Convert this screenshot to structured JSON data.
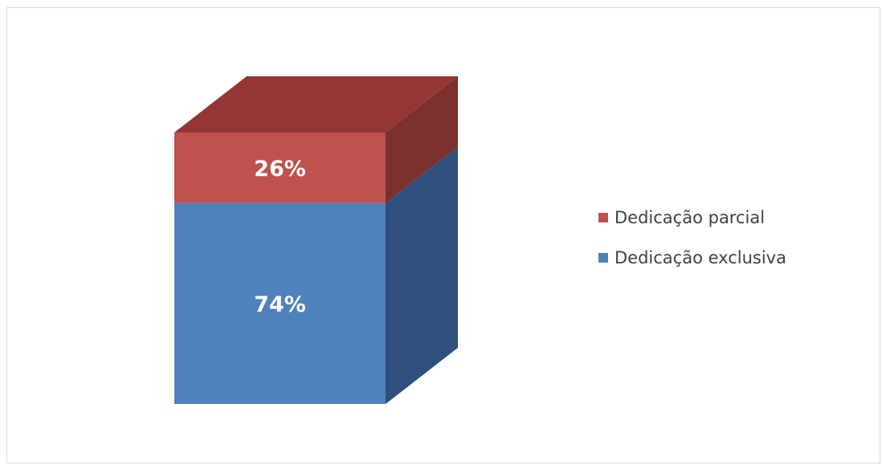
{
  "chart_data": {
    "type": "bar",
    "stacked": true,
    "three_d": true,
    "categories": [
      ""
    ],
    "series": [
      {
        "name": "Dedicação exclusiva",
        "values": [
          74
        ],
        "label": "74%",
        "color": "#4f81bd",
        "side_color": "#2f4f7c"
      },
      {
        "name": "Dedicação parcial",
        "values": [
          26
        ],
        "label": "26%",
        "color": "#c0504d",
        "side_color": "#7b302e",
        "top_color": "#943634"
      }
    ],
    "ylim": [
      0,
      100
    ],
    "legend_position": "right",
    "legend_order": [
      "Dedicação parcial",
      "Dedicação exclusiva"
    ],
    "grid": false
  }
}
